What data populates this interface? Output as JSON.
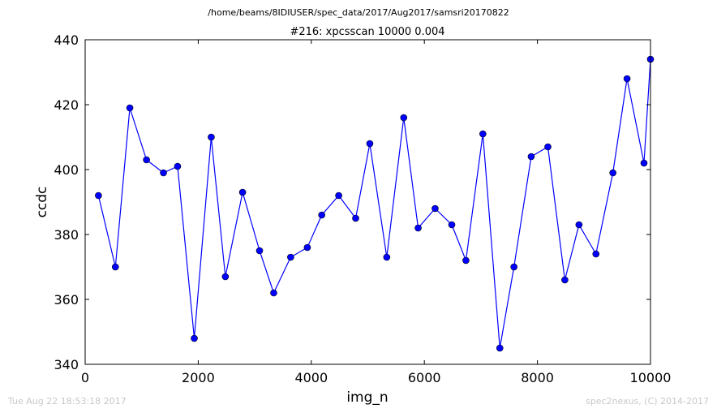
{
  "chart_data": {
    "type": "line",
    "suptitle": "/home/beams/8IDIUSER/spec_data/2017/Aug2017/samsri20170822",
    "title": "#216: xpcsscan 10000 0.004",
    "xlabel": "img_n",
    "ylabel": "ccdc",
    "xlim": [
      0,
      10000
    ],
    "ylim": [
      340,
      440
    ],
    "xticks": [
      0,
      2000,
      4000,
      6000,
      8000,
      10000
    ],
    "yticks": [
      340,
      360,
      380,
      400,
      420,
      440
    ],
    "grid": false,
    "series": [
      {
        "color": "#0000ff",
        "marker": "circle",
        "x": [
          235,
          535,
          790,
          1085,
          1385,
          1635,
          1930,
          2230,
          2480,
          2785,
          3085,
          3335,
          3635,
          3930,
          4185,
          4485,
          4785,
          5035,
          5335,
          5635,
          5890,
          6190,
          6485,
          6735,
          7035,
          7335,
          7585,
          7890,
          8185,
          8485,
          8735,
          9035,
          9335,
          9585,
          9885,
          10000
        ],
        "y": [
          392,
          370,
          419,
          403,
          399,
          401,
          348,
          410,
          367,
          393,
          375,
          362,
          373,
          376,
          386,
          392,
          385,
          408,
          373,
          416,
          382,
          388,
          383,
          372,
          411,
          345,
          370,
          404,
          407,
          366,
          383,
          374,
          399,
          428,
          402,
          434
        ]
      }
    ]
  },
  "footer": {
    "left": "Tue Aug 22 18:53:18 2017",
    "right": "spec2nexus, (C) 2014-2017"
  }
}
